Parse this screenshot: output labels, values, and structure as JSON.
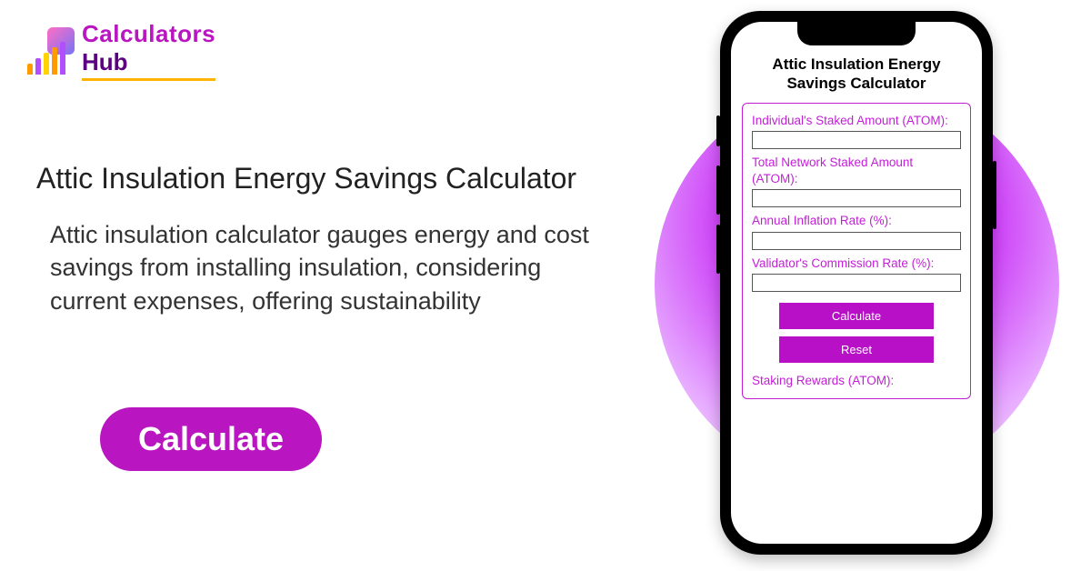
{
  "logo": {
    "line1": "Calculators",
    "line2": "Hub"
  },
  "page": {
    "heading": "Attic Insulation Energy Savings Calculator",
    "description": "Attic insulation calculator gauges energy and cost savings from installing insulation, considering current expenses, offering sustainability",
    "cta_label": "Calculate"
  },
  "colors": {
    "brand_purple": "#b915c0",
    "brand_purple_dark": "#5a0080",
    "accent_orange": "#ffb300",
    "form_border": "#c21fd6",
    "form_button": "#b810c7",
    "circle_gradient_inner": "#d657ff",
    "circle_gradient_outer": "#fbe9ff",
    "text_dark": "#222222"
  },
  "phone": {
    "title": "Attic Insulation Energy Savings Calculator",
    "form": {
      "fields": [
        {
          "label": "Individual's Staked Amount (ATOM):",
          "value": ""
        },
        {
          "label": "Total Network Staked Amount (ATOM):",
          "value": ""
        },
        {
          "label": "Annual Inflation Rate (%):",
          "value": ""
        },
        {
          "label": "Validator's Commission Rate (%):",
          "value": ""
        }
      ],
      "calculate_label": "Calculate",
      "reset_label": "Reset",
      "result_label": "Staking Rewards (ATOM):"
    }
  }
}
